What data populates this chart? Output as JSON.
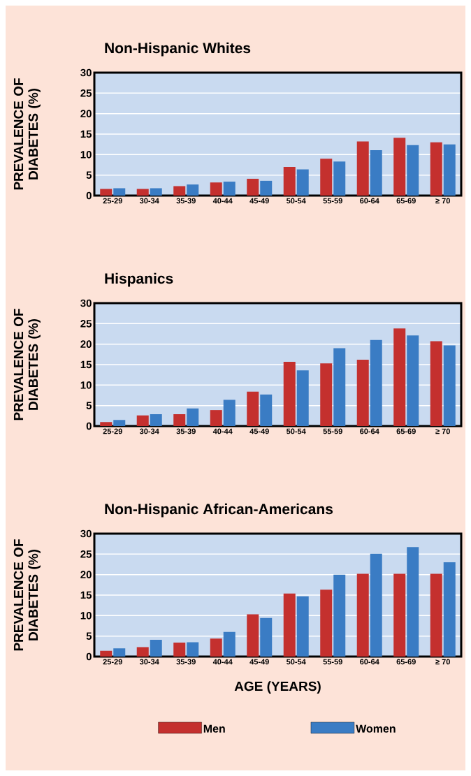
{
  "chart_data": [
    {
      "type": "bar",
      "title": "Non-Hispanic Whites",
      "ylabel": "PREVALENCE OF DIABETES (%)",
      "categories": [
        "25-29",
        "30-34",
        "35-39",
        "40-44",
        "45-49",
        "50-54",
        "55-59",
        "60-64",
        "65-69",
        "≥ 70"
      ],
      "series": [
        {
          "color": "#c4302e",
          "values": [
            1.6,
            1.6,
            2.3,
            3.2,
            4.1,
            7.0,
            9.0,
            13.2,
            14.1,
            13.0
          ]
        },
        {
          "color": "#3a7cc4",
          "values": [
            1.8,
            1.8,
            2.7,
            3.4,
            3.6,
            6.4,
            8.3,
            11.1,
            12.3,
            12.5
          ]
        }
      ],
      "ylim": [
        0,
        30
      ],
      "yticks": [
        0,
        5,
        10,
        15,
        20,
        25,
        30
      ],
      "grid": "y"
    },
    {
      "type": "bar",
      "title": "Hispanics",
      "ylabel": "PREVALENCE OF DIABETES (%)",
      "categories": [
        "25-29",
        "30-34",
        "35-39",
        "40-44",
        "45-49",
        "50-54",
        "55-59",
        "60-64",
        "65-69",
        "≥ 70"
      ],
      "series": [
        {
          "color": "#c4302e",
          "values": [
            1.0,
            2.6,
            2.9,
            3.9,
            8.4,
            15.7,
            15.3,
            16.2,
            23.8,
            20.7
          ]
        },
        {
          "color": "#3a7cc4",
          "values": [
            1.5,
            2.9,
            4.3,
            6.4,
            7.7,
            13.6,
            19.0,
            21.0,
            22.1,
            19.7
          ]
        }
      ],
      "ylim": [
        0,
        30
      ],
      "yticks": [
        0,
        5,
        10,
        15,
        20,
        25,
        30
      ],
      "grid": "y"
    },
    {
      "type": "bar",
      "title": "Non-Hispanic African-Americans",
      "ylabel": "PREVALENCE OF DIABETES (%)",
      "xlabel": "AGE (YEARS)",
      "categories": [
        "25-29",
        "30-34",
        "35-39",
        "40-44",
        "45-49",
        "50-54",
        "55-59",
        "60-64",
        "65-69",
        "≥ 70"
      ],
      "series": [
        {
          "name": "Men",
          "color": "#c4302e",
          "values": [
            1.4,
            2.3,
            3.4,
            4.4,
            10.3,
            15.4,
            16.3,
            20.2,
            20.2,
            20.2
          ]
        },
        {
          "name": "Women",
          "color": "#3a7cc4",
          "values": [
            2.0,
            4.1,
            3.5,
            6.0,
            9.4,
            14.7,
            20.0,
            25.1,
            26.7,
            23.0
          ]
        }
      ],
      "ylim": [
        0,
        30
      ],
      "yticks": [
        0,
        5,
        10,
        15,
        20,
        25,
        30
      ],
      "grid": "y",
      "legend": "bottom"
    }
  ]
}
